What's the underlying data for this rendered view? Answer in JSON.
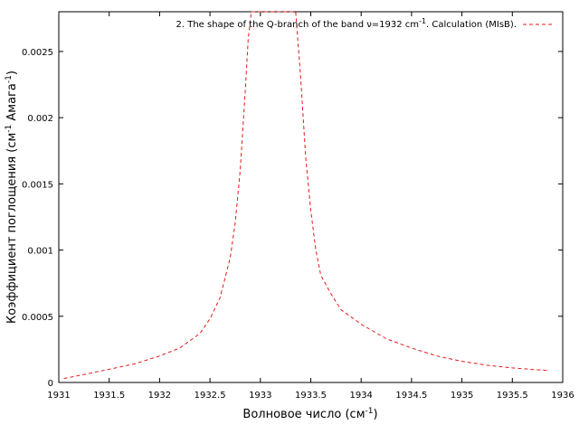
{
  "chart_data": {
    "type": "line",
    "title": "",
    "xlabel": "Волновое число (см",
    "xlabel_sup": "-1",
    "xlabel_end": ")",
    "ylabel_a": "Коэффициент поглощения (см",
    "ylabel_sup1": "-1",
    "ylabel_b": " Амага",
    "ylabel_sup2": "-1",
    "ylabel_c": ")",
    "xlim": [
      1931,
      1936
    ],
    "ylim": [
      0,
      0.0028
    ],
    "x_ticks": [
      "1931",
      "1931.5",
      "1932",
      "1932.5",
      "1933",
      "1933.5",
      "1934",
      "1934.5",
      "1935",
      "1935.5",
      "1936"
    ],
    "y_ticks": [
      "0",
      "0.0005",
      "0.001",
      "0.0015",
      "0.002",
      "0.0025"
    ],
    "grid": false,
    "legend_position": "top-right",
    "series": [
      {
        "name": "2. The shape of the Q-branch of the band ν=1932 cm",
        "name_sup": "-1",
        "name_end": ". Calculation (MIsB).",
        "color": "#e41a1c",
        "line_style": "dashed",
        "x": [
          1931.05,
          1931.25,
          1931.5,
          1931.75,
          1932.0,
          1932.2,
          1932.4,
          1932.5,
          1932.6,
          1932.7,
          1932.75,
          1932.8,
          1932.85,
          1932.88,
          1932.91,
          1933.35,
          1933.4,
          1933.45,
          1933.5,
          1933.55,
          1933.6,
          1933.7,
          1933.8,
          1934.0,
          1934.25,
          1934.5,
          1934.75,
          1935.0,
          1935.25,
          1935.5,
          1935.85
        ],
        "y": [
          3e-05,
          6e-05,
          0.0001,
          0.00014,
          0.0002,
          0.00026,
          0.00037,
          0.00048,
          0.00064,
          0.00094,
          0.0012,
          0.0016,
          0.0022,
          0.0026,
          0.0029,
          0.0029,
          0.0023,
          0.0017,
          0.0013,
          0.001,
          0.00081,
          0.00067,
          0.00055,
          0.00044,
          0.00033,
          0.00026,
          0.0002,
          0.00016,
          0.00013,
          0.00011,
          9e-05
        ]
      }
    ]
  }
}
